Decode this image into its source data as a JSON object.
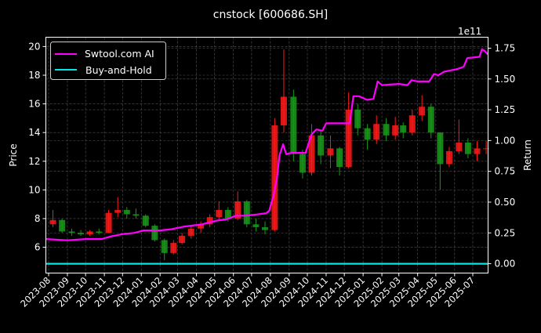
{
  "chart_data": {
    "type": "candlestick+line",
    "title": "cnstock [600686.SH]",
    "ylabel_left": "Price",
    "ylabel_right": "Return",
    "right_axis_multiplier": "1e11",
    "ylim_left": [
      4.2,
      20.65
    ],
    "ylim_right": [
      -0.076,
      1.839
    ],
    "yticks_left": [
      "6",
      "8",
      "10",
      "12",
      "14",
      "16",
      "18",
      "20"
    ],
    "yticks_right": [
      "0.00",
      "0.25",
      "0.50",
      "0.75",
      "1.00",
      "1.25",
      "1.50",
      "1.75"
    ],
    "xticks": [
      "2023-08",
      "2023-09",
      "2023-10",
      "2023-11",
      "2023-12",
      "2024-01",
      "2024-02",
      "2024-03",
      "2024-04",
      "2024-05",
      "2024-06",
      "2024-07",
      "2024-08",
      "2024-09",
      "2024-10",
      "2024-11",
      "2024-12",
      "2025-01",
      "2025-02",
      "2025-03",
      "2025-04",
      "2025-05",
      "2025-06",
      "2025-07"
    ],
    "grid": true,
    "legend": {
      "placement": "top-left",
      "entries": [
        {
          "name": "Swtool.com AI",
          "color": "#ff00ff"
        },
        {
          "name": "Buy-and-Hold",
          "color": "#00e5e5"
        }
      ]
    },
    "candle_colors": {
      "up": "#ff1a1a",
      "down": "#1a9a1a"
    },
    "candles_columns": [
      "date",
      "open",
      "high",
      "low",
      "close"
    ],
    "candles": [
      [
        "2023-08-01",
        7.6,
        8.6,
        7.4,
        7.9
      ],
      [
        "2023-08-16",
        7.9,
        8.0,
        7.0,
        7.1
      ],
      [
        "2023-09-01",
        7.1,
        7.3,
        6.8,
        7.0
      ],
      [
        "2023-09-16",
        7.0,
        7.2,
        6.8,
        6.9
      ],
      [
        "2023-10-01",
        6.9,
        7.2,
        6.8,
        7.1
      ],
      [
        "2023-10-16",
        7.1,
        7.3,
        6.9,
        7.0
      ],
      [
        "2023-11-01",
        7.0,
        8.6,
        7.0,
        8.4
      ],
      [
        "2023-11-16",
        8.4,
        9.5,
        8.1,
        8.6
      ],
      [
        "2023-12-01",
        8.6,
        8.8,
        8.0,
        8.3
      ],
      [
        "2023-12-16",
        8.3,
        8.7,
        8.0,
        8.2
      ],
      [
        "2024-01-01",
        8.2,
        8.3,
        7.4,
        7.5
      ],
      [
        "2024-01-16",
        7.5,
        7.6,
        6.4,
        6.5
      ],
      [
        "2024-02-01",
        6.5,
        6.6,
        5.1,
        5.6
      ],
      [
        "2024-02-16",
        5.6,
        6.5,
        5.5,
        6.3
      ],
      [
        "2024-03-01",
        6.3,
        7.0,
        6.2,
        6.8
      ],
      [
        "2024-03-16",
        6.8,
        7.5,
        6.6,
        7.3
      ],
      [
        "2024-04-01",
        7.3,
        7.8,
        7.0,
        7.6
      ],
      [
        "2024-04-16",
        7.6,
        8.3,
        7.4,
        8.1
      ],
      [
        "2024-05-01",
        8.1,
        9.2,
        7.9,
        8.6
      ],
      [
        "2024-05-16",
        8.6,
        8.8,
        7.8,
        8.0
      ],
      [
        "2024-06-01",
        8.0,
        9.9,
        7.9,
        9.2
      ],
      [
        "2024-06-16",
        9.2,
        9.3,
        7.4,
        7.6
      ],
      [
        "2024-07-01",
        7.6,
        8.0,
        7.1,
        7.4
      ],
      [
        "2024-07-16",
        7.4,
        7.8,
        6.9,
        7.2
      ],
      [
        "2024-08-01",
        7.2,
        15.0,
        7.1,
        14.5
      ],
      [
        "2024-08-16",
        14.5,
        19.8,
        14.0,
        16.5
      ],
      [
        "2024-09-01",
        16.5,
        17.0,
        12.0,
        12.5
      ],
      [
        "2024-09-16",
        12.5,
        12.8,
        10.8,
        11.2
      ],
      [
        "2024-10-01",
        11.2,
        14.6,
        11.0,
        13.8
      ],
      [
        "2024-10-16",
        13.8,
        14.2,
        11.8,
        12.4
      ],
      [
        "2024-11-01",
        12.4,
        13.8,
        11.5,
        12.9
      ],
      [
        "2024-11-16",
        12.9,
        13.0,
        11.0,
        11.6
      ],
      [
        "2024-12-01",
        11.6,
        16.8,
        11.5,
        15.6
      ],
      [
        "2024-12-16",
        15.6,
        16.0,
        13.8,
        14.3
      ],
      [
        "2025-01-01",
        14.3,
        14.6,
        12.8,
        13.5
      ],
      [
        "2025-01-16",
        13.5,
        15.2,
        13.2,
        14.6
      ],
      [
        "2025-02-01",
        14.6,
        15.0,
        13.4,
        13.8
      ],
      [
        "2025-02-16",
        13.8,
        15.1,
        13.5,
        14.5
      ],
      [
        "2025-03-01",
        14.5,
        14.7,
        13.6,
        14.0
      ],
      [
        "2025-03-16",
        14.0,
        15.6,
        13.8,
        15.2
      ],
      [
        "2025-04-01",
        15.2,
        16.6,
        14.8,
        15.8
      ],
      [
        "2025-04-16",
        15.8,
        16.0,
        13.6,
        14.0
      ],
      [
        "2025-05-01",
        14.0,
        14.0,
        10.0,
        11.8
      ],
      [
        "2025-05-16",
        11.8,
        13.0,
        11.6,
        12.7
      ],
      [
        "2025-06-01",
        12.7,
        14.9,
        12.5,
        13.3
      ],
      [
        "2025-06-16",
        13.3,
        13.6,
        12.2,
        12.5
      ],
      [
        "2025-07-01",
        12.5,
        13.4,
        12.0,
        12.9
      ],
      [
        "2025-07-16",
        12.9,
        13.4,
        12.5,
        12.9
      ]
    ],
    "series": [
      {
        "name": "Swtool.com AI",
        "color": "#ff00ff",
        "points": [
          [
            "2023-07-28",
            0.2
          ],
          [
            "2023-09-01",
            0.19
          ],
          [
            "2023-10-01",
            0.2
          ],
          [
            "2023-10-28",
            0.2
          ],
          [
            "2023-11-10",
            0.22
          ],
          [
            "2023-12-01",
            0.24
          ],
          [
            "2023-12-20",
            0.25
          ],
          [
            "2024-01-05",
            0.27
          ],
          [
            "2024-02-01",
            0.27
          ],
          [
            "2024-02-20",
            0.28
          ],
          [
            "2024-03-10",
            0.3
          ],
          [
            "2024-04-10",
            0.32
          ],
          [
            "2024-05-05",
            0.35
          ],
          [
            "2024-05-20",
            0.36
          ],
          [
            "2024-06-05",
            0.39
          ],
          [
            "2024-06-20",
            0.39
          ],
          [
            "2024-07-10",
            0.4
          ],
          [
            "2024-07-25",
            0.41
          ],
          [
            "2024-07-30",
            0.43
          ],
          [
            "2024-08-06",
            0.55
          ],
          [
            "2024-08-12",
            0.7
          ],
          [
            "2024-08-16",
            0.88
          ],
          [
            "2024-08-22",
            0.97
          ],
          [
            "2024-08-27",
            0.89
          ],
          [
            "2024-09-05",
            0.9
          ],
          [
            "2024-09-28",
            0.9
          ],
          [
            "2024-10-08",
            1.05
          ],
          [
            "2024-10-16",
            1.09
          ],
          [
            "2024-10-26",
            1.08
          ],
          [
            "2024-11-01",
            1.14
          ],
          [
            "2024-12-05",
            1.14
          ],
          [
            "2024-12-10",
            1.14
          ],
          [
            "2024-12-16",
            1.36
          ],
          [
            "2024-12-25",
            1.36
          ],
          [
            "2025-01-08",
            1.33
          ],
          [
            "2025-01-18",
            1.34
          ],
          [
            "2025-01-25",
            1.48
          ],
          [
            "2025-02-01",
            1.45
          ],
          [
            "2025-03-01",
            1.46
          ],
          [
            "2025-03-15",
            1.45
          ],
          [
            "2025-03-22",
            1.49
          ],
          [
            "2025-04-01",
            1.48
          ],
          [
            "2025-04-20",
            1.48
          ],
          [
            "2025-04-28",
            1.54
          ],
          [
            "2025-05-05",
            1.53
          ],
          [
            "2025-05-15",
            1.56
          ],
          [
            "2025-06-05",
            1.58
          ],
          [
            "2025-06-16",
            1.6
          ],
          [
            "2025-06-22",
            1.67
          ],
          [
            "2025-07-12",
            1.68
          ],
          [
            "2025-07-16",
            1.74
          ],
          [
            "2025-07-20",
            1.73
          ],
          [
            "2025-07-26",
            1.7
          ]
        ]
      },
      {
        "name": "Buy-and-Hold",
        "color": "#00e5e5",
        "points": [
          [
            "2023-07-28",
            0.0
          ],
          [
            "2025-07-26",
            0.0
          ]
        ]
      }
    ]
  }
}
